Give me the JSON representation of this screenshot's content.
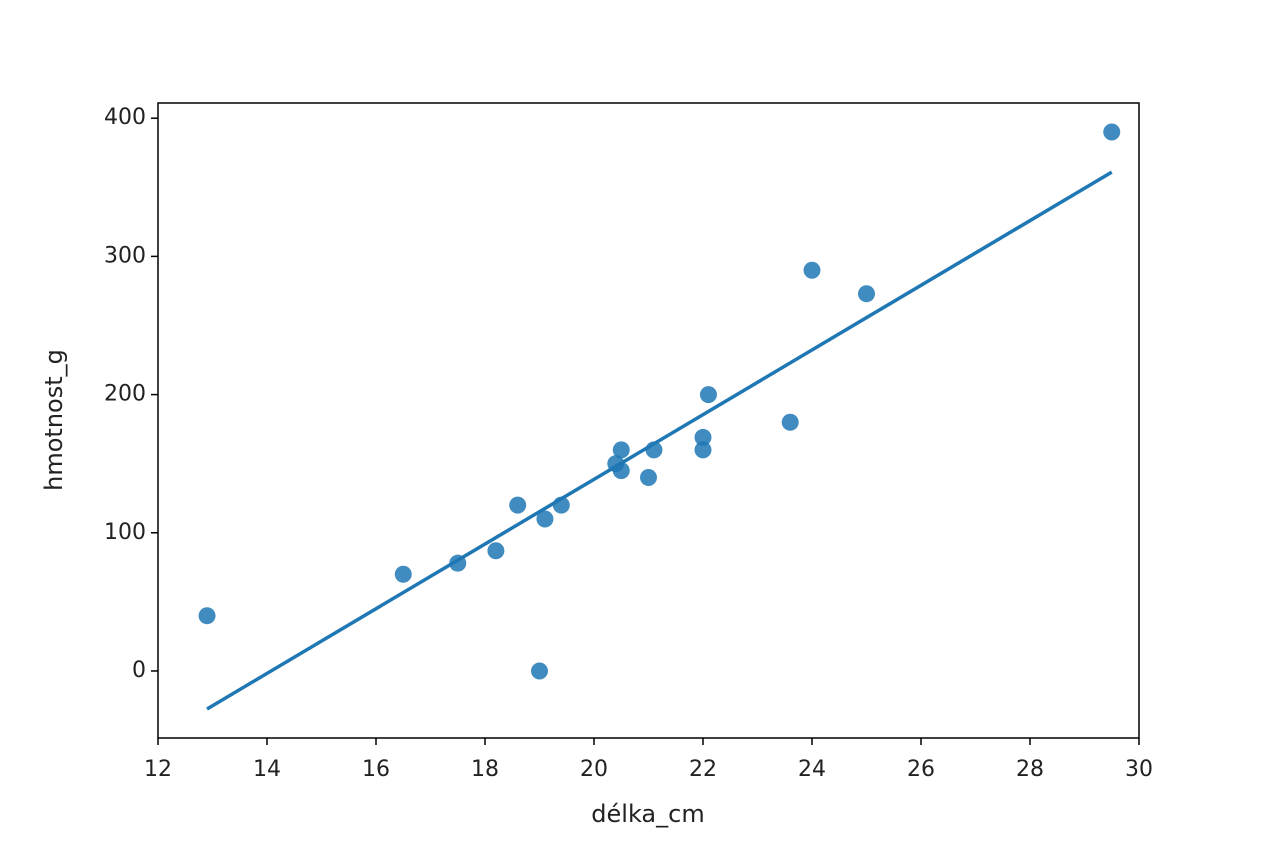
{
  "chart_data": {
    "type": "scatter",
    "x_label": "délka_cm",
    "y_label": "hmotnost_g",
    "x": [
      12.9,
      16.5,
      17.5,
      18.2,
      18.6,
      19.0,
      19.1,
      19.4,
      20.4,
      20.5,
      20.5,
      21.0,
      21.1,
      22.0,
      22.0,
      22.1,
      23.6,
      24.0,
      25.0,
      29.5
    ],
    "y": [
      40,
      70,
      78,
      87,
      120,
      0,
      110,
      120,
      150,
      160,
      145,
      140,
      160,
      169,
      160,
      200,
      180,
      290,
      273,
      390
    ],
    "color": "#1f77b4",
    "fit": {
      "x": [
        12.9,
        29.5
      ],
      "y": [
        -27.5,
        361
      ],
      "color": "#1f77b4"
    },
    "xlim": [
      12,
      30
    ],
    "ylim": [
      -48.5,
      411
    ],
    "xticks": [
      12,
      14,
      16,
      18,
      20,
      22,
      24,
      26,
      28,
      30
    ],
    "yticks": [
      0,
      100,
      200,
      300,
      400
    ]
  }
}
